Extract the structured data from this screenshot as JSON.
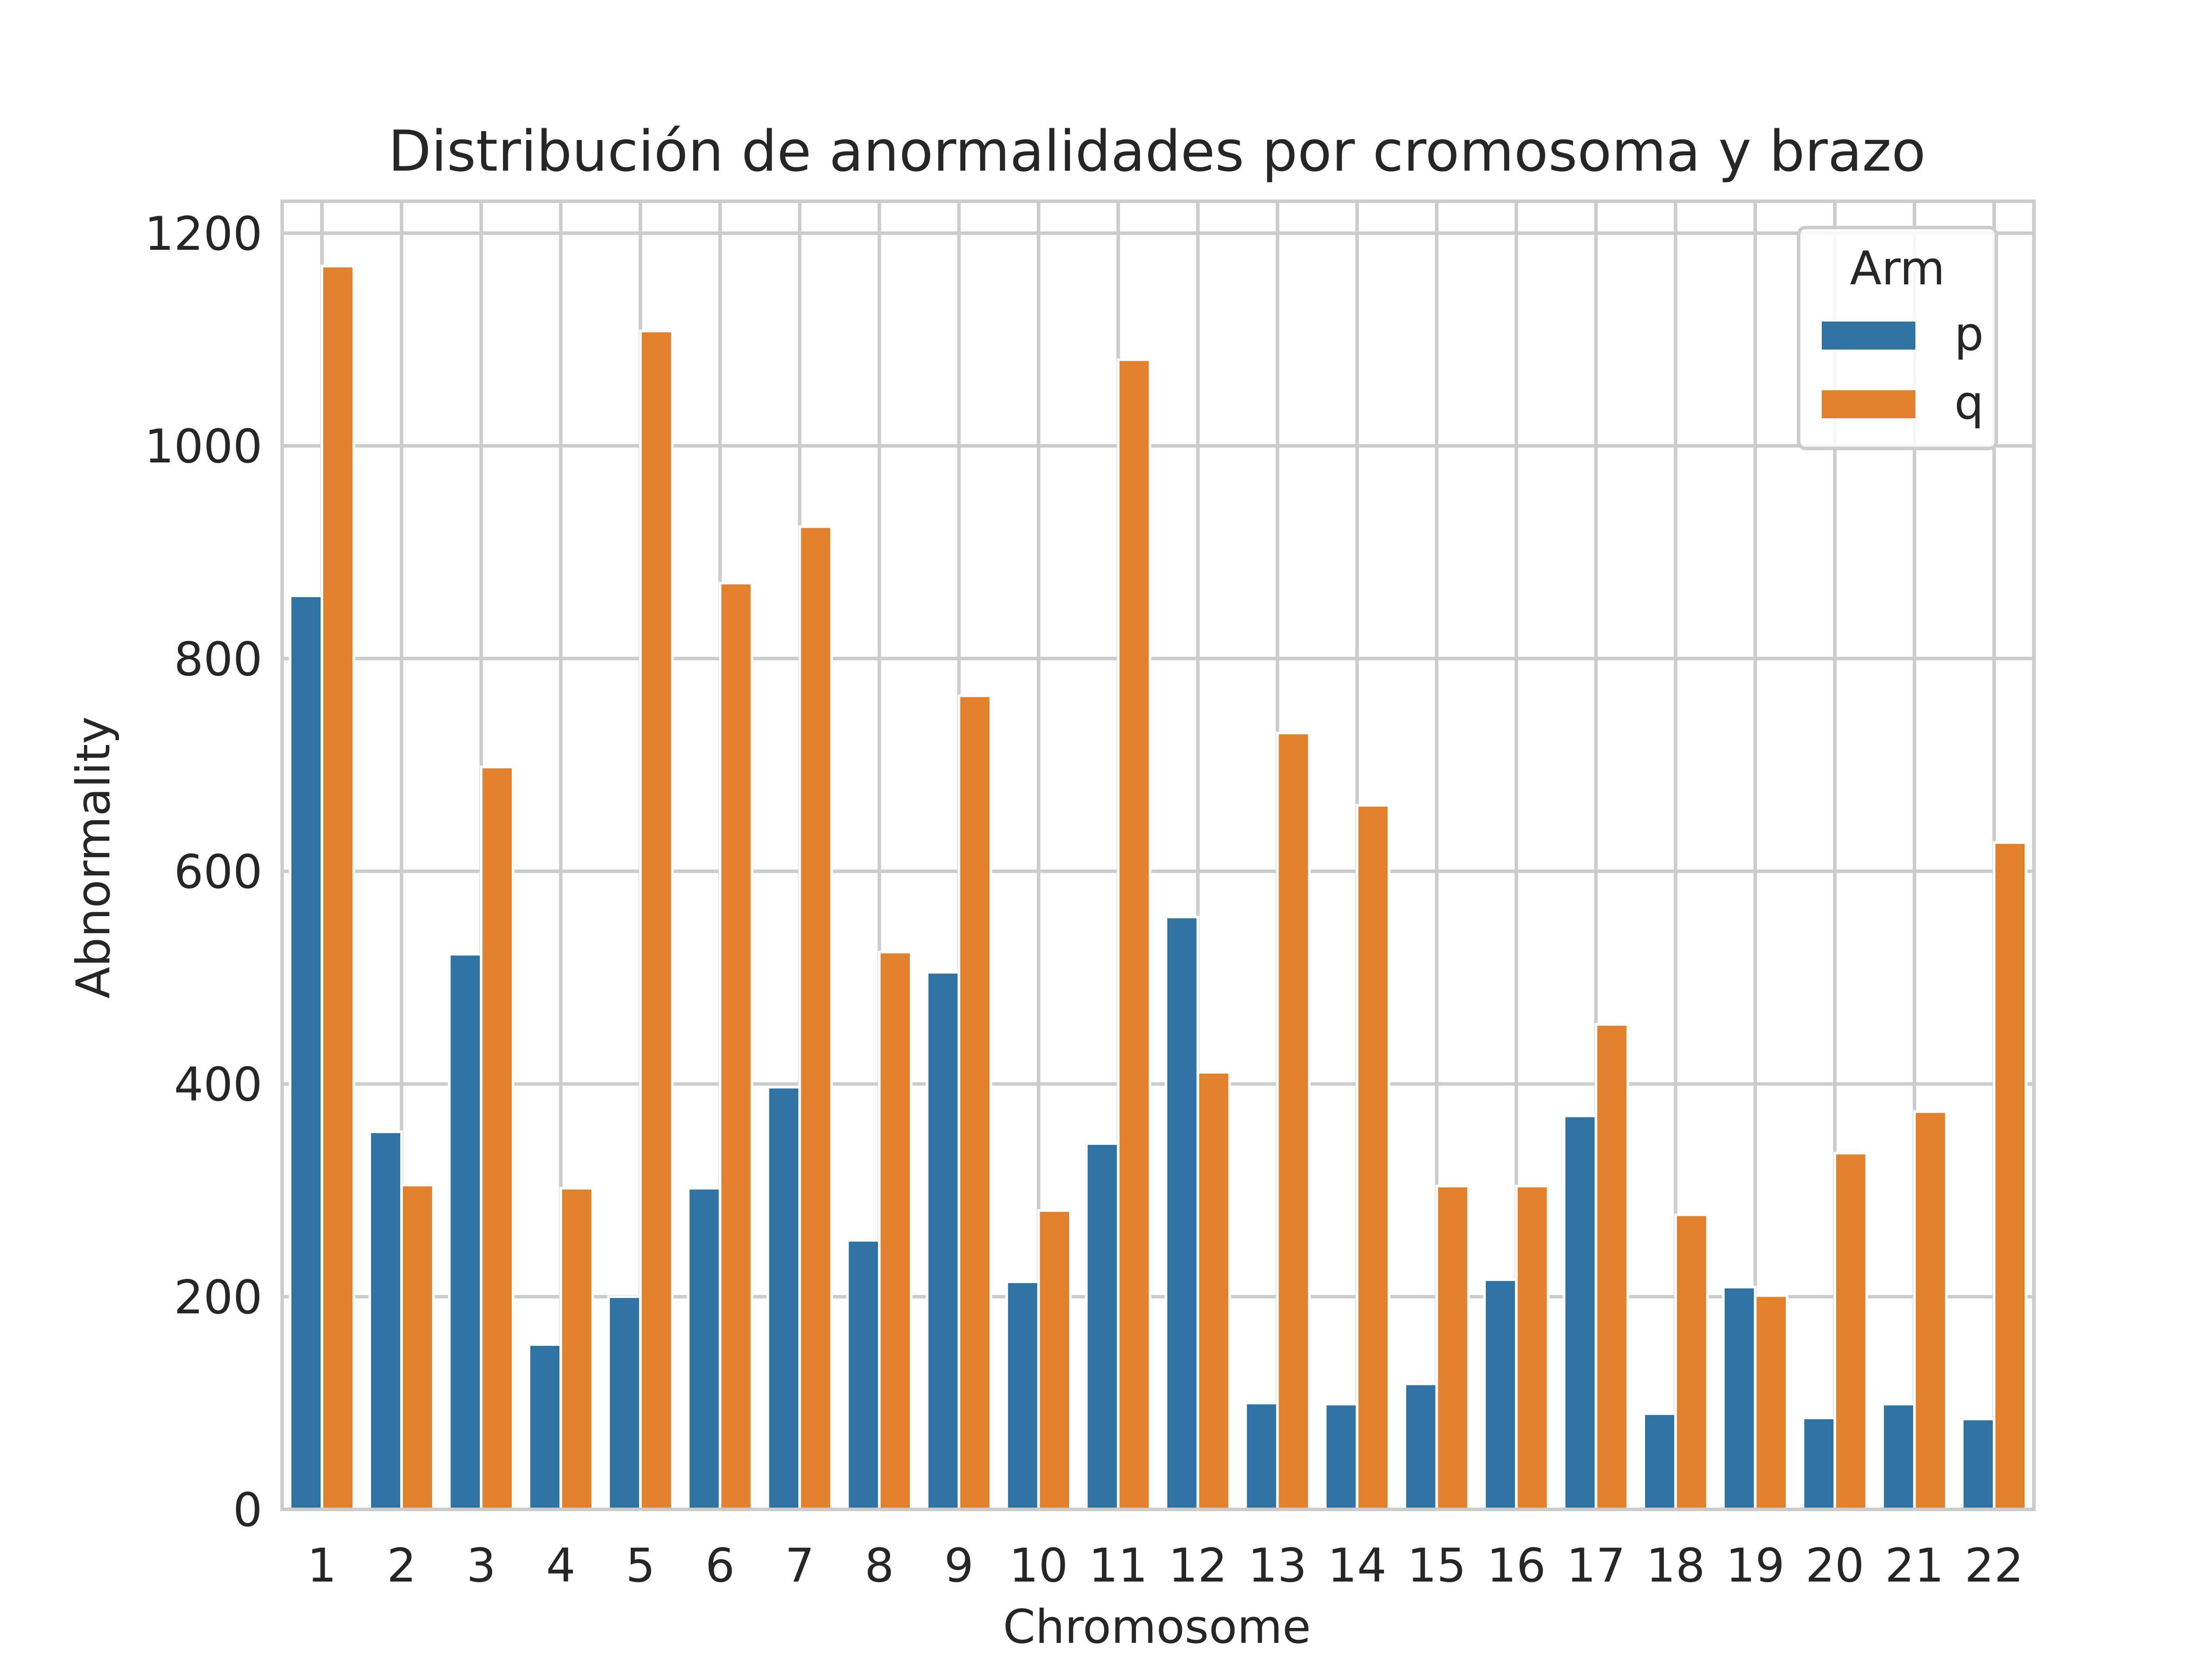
{
  "chart_data": {
    "type": "bar",
    "title": "Distribución de anormalidades por cromosoma y brazo",
    "xlabel": "Chromosome",
    "ylabel": "Abnormality",
    "categories": [
      "1",
      "2",
      "3",
      "4",
      "5",
      "6",
      "7",
      "8",
      "9",
      "10",
      "11",
      "12",
      "13",
      "14",
      "15",
      "16",
      "17",
      "18",
      "19",
      "20",
      "21",
      "22"
    ],
    "series": [
      {
        "name": "p",
        "color": "#2f72a4",
        "values": [
          859,
          355,
          522,
          155,
          200,
          302,
          397,
          253,
          505,
          214,
          344,
          557,
          100,
          99,
          118,
          216,
          370,
          90,
          209,
          86,
          99,
          85
        ]
      },
      {
        "name": "q",
        "color": "#e1812c",
        "values": [
          1169,
          305,
          698,
          302,
          1108,
          871,
          924,
          524,
          765,
          281,
          1081,
          411,
          730,
          662,
          304,
          304,
          456,
          277,
          201,
          335,
          374,
          627
        ]
      }
    ],
    "ylim": [
      0,
      1230
    ],
    "yticks": [
      0,
      200,
      400,
      600,
      800,
      1000,
      1200
    ],
    "grid": true,
    "legend": {
      "title": "Arm",
      "position": "top-right"
    }
  }
}
